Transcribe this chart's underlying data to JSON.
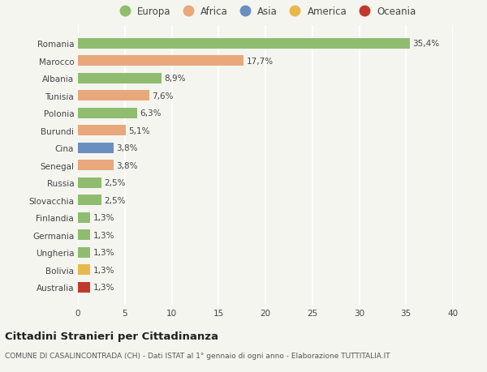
{
  "categories": [
    "Australia",
    "Bolivia",
    "Ungheria",
    "Germania",
    "Finlandia",
    "Slovacchia",
    "Russia",
    "Senegal",
    "Cina",
    "Burundi",
    "Polonia",
    "Tunisia",
    "Albania",
    "Marocco",
    "Romania"
  ],
  "values": [
    1.3,
    1.3,
    1.3,
    1.3,
    1.3,
    2.5,
    2.5,
    3.8,
    3.8,
    5.1,
    6.3,
    7.6,
    8.9,
    17.7,
    35.4
  ],
  "colors": [
    "#c0392b",
    "#e8b84b",
    "#8fbc6e",
    "#8fbc6e",
    "#8fbc6e",
    "#8fbc6e",
    "#8fbc6e",
    "#e8a87c",
    "#6a8fbf",
    "#e8a87c",
    "#8fbc6e",
    "#e8a87c",
    "#8fbc6e",
    "#e8a87c",
    "#8fbc6e"
  ],
  "labels": [
    "1,3%",
    "1,3%",
    "1,3%",
    "1,3%",
    "1,3%",
    "2,5%",
    "2,5%",
    "3,8%",
    "3,8%",
    "5,1%",
    "6,3%",
    "7,6%",
    "8,9%",
    "17,7%",
    "35,4%"
  ],
  "xlim": [
    0,
    40
  ],
  "xticks": [
    0,
    5,
    10,
    15,
    20,
    25,
    30,
    35,
    40
  ],
  "legend_labels": [
    "Europa",
    "Africa",
    "Asia",
    "America",
    "Oceania"
  ],
  "legend_colors": [
    "#8fbc6e",
    "#e8a87c",
    "#6a8fbf",
    "#e8b84b",
    "#c0392b"
  ],
  "title": "Cittadini Stranieri per Cittadinanza",
  "subtitle": "COMUNE DI CASALINCONTRADA (CH) - Dati ISTAT al 1° gennaio di ogni anno - Elaborazione TUTTITALIA.IT",
  "bg_color": "#f5f5f0",
  "grid_color": "#ffffff",
  "bar_height": 0.6
}
